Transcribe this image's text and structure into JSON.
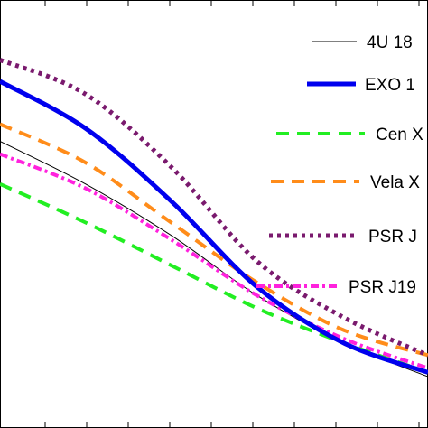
{
  "chart_data": {
    "type": "line",
    "title": "",
    "xlabel": "",
    "ylabel": "",
    "grid": false,
    "legend_position": "right",
    "xlim": [
      0,
      1
    ],
    "ylim": [
      0,
      1
    ],
    "series": [
      {
        "name": "4U 18",
        "color": "#000000",
        "style": "solid-thin",
        "x": [
          0,
          0.2,
          0.4,
          0.6,
          0.8,
          1.0
        ],
        "y": [
          0.67,
          0.57,
          0.45,
          0.31,
          0.2,
          0.12
        ]
      },
      {
        "name": "EXO 1",
        "color": "#0000ee",
        "style": "solid-thick",
        "x": [
          0,
          0.2,
          0.4,
          0.6,
          0.8,
          1.0
        ],
        "y": [
          0.81,
          0.7,
          0.53,
          0.33,
          0.2,
          0.13
        ]
      },
      {
        "name": "Cen X",
        "color": "#22ee22",
        "style": "dashed",
        "x": [
          0,
          0.2,
          0.4,
          0.6,
          0.8,
          1.0
        ],
        "y": [
          0.57,
          0.48,
          0.38,
          0.28,
          0.2,
          0.13
        ]
      },
      {
        "name": "Vela X",
        "color": "#ff8c1a",
        "style": "dashed",
        "x": [
          0,
          0.2,
          0.4,
          0.6,
          0.8,
          1.0
        ],
        "y": [
          0.71,
          0.62,
          0.48,
          0.34,
          0.23,
          0.17
        ]
      },
      {
        "name": "PSR J",
        "color": "#7a1a6e",
        "style": "dotted",
        "x": [
          0,
          0.2,
          0.4,
          0.6,
          0.8,
          1.0
        ],
        "y": [
          0.86,
          0.78,
          0.61,
          0.39,
          0.26,
          0.17
        ]
      },
      {
        "name": "PSR J19",
        "color": "#ff22dd",
        "style": "dash-dot",
        "x": [
          0,
          0.2,
          0.4,
          0.6,
          0.8,
          1.0
        ],
        "y": [
          0.64,
          0.56,
          0.44,
          0.31,
          0.21,
          0.14
        ]
      }
    ]
  }
}
